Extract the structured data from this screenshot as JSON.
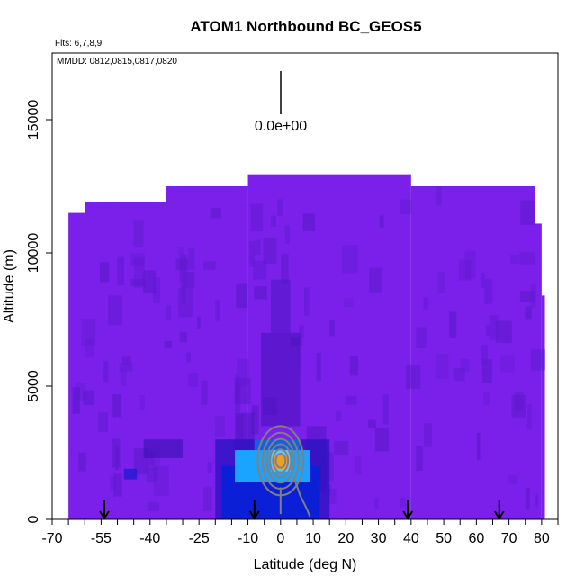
{
  "chart_data": {
    "type": "heatmap",
    "title": "ATOM1 Northbound BC_GEOS5",
    "flights_note": "Flts: 6,7,8,9",
    "dates_note": "MMDD: 0812,0815,0817,0820",
    "xlabel": "Latitude (deg N)",
    "ylabel": "Altitude (m)",
    "xlim": [
      -70,
      85
    ],
    "ylim": [
      0,
      17500
    ],
    "x_ticks": [
      -70,
      -55,
      -40,
      -25,
      -10,
      0,
      10,
      20,
      30,
      40,
      50,
      60,
      70,
      80
    ],
    "y_ticks": [
      0,
      5000,
      10000,
      15000
    ],
    "scale_label": "0.0e+00",
    "flight_path_markers": [
      -54,
      -8,
      39,
      67
    ],
    "colors": {
      "background_field": "#7a20ea",
      "field_dark": "#5a18c8",
      "high_blue": "#0a1fd6",
      "cyan": "#1aa3ff",
      "peak": "#f0a020",
      "contour": "#808080"
    },
    "field_columns": [
      {
        "lat_min": -65,
        "lat_max": -60,
        "top": 11500
      },
      {
        "lat_min": -60,
        "lat_max": -50,
        "top": 11900
      },
      {
        "lat_min": -50,
        "lat_max": -35,
        "top": 11900
      },
      {
        "lat_min": -35,
        "lat_max": -10,
        "top": 12500
      },
      {
        "lat_min": -10,
        "lat_max": 40,
        "top": 12950
      },
      {
        "lat_min": 40,
        "lat_max": 78,
        "top": 12500
      },
      {
        "lat_min": 78,
        "lat_max": 80,
        "top": 11100
      },
      {
        "lat_min": 80,
        "lat_max": 81,
        "top": 8400
      }
    ],
    "high_region": {
      "lat_min": -20,
      "lat_max": 15,
      "alt_min": 0,
      "alt_max": 3000
    },
    "plume_center": {
      "lat": 0,
      "alt": 2200
    }
  }
}
